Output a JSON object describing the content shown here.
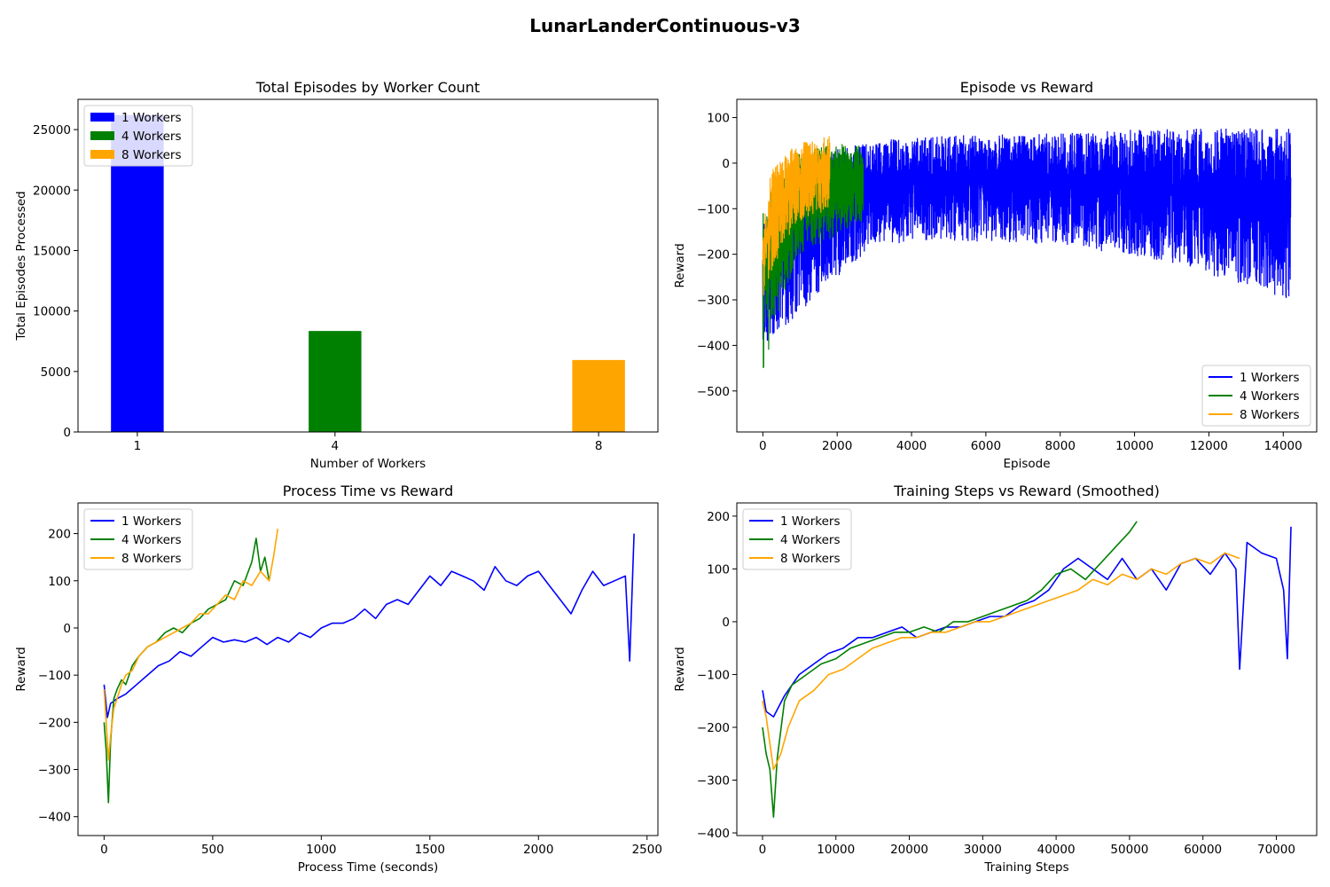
{
  "figure_title": "LunarLanderContinuous-v3",
  "colors": {
    "1 Workers": "#0000ff",
    "4 Workers": "#008000",
    "8 Workers": "#ffa500"
  },
  "chart_data": [
    {
      "id": "episodes",
      "type": "bar",
      "title": "Total Episodes by Worker Count",
      "xlabel": "Number of Workers",
      "ylabel": "Total Episodes Processed",
      "categories": [
        "1",
        "4",
        "8"
      ],
      "x_positions": [
        1,
        4,
        8
      ],
      "values": [
        26200,
        8350,
        5950
      ],
      "series_names": [
        "1 Workers",
        "4 Workers",
        "8 Workers"
      ],
      "ylim": [
        0,
        27500
      ],
      "yticks": [
        0,
        5000,
        10000,
        15000,
        20000,
        25000
      ],
      "legend": "upper-left",
      "grid": false
    },
    {
      "id": "episode_reward",
      "type": "line",
      "title": "Episode vs Reward",
      "xlabel": "Episode",
      "ylabel": "Reward",
      "xlim": [
        -700,
        14900
      ],
      "ylim": [
        -590,
        140
      ],
      "xticks": [
        0,
        2000,
        4000,
        6000,
        8000,
        10000,
        12000,
        14000
      ],
      "yticks": [
        -500,
        -400,
        -300,
        -200,
        -100,
        0,
        100
      ],
      "legend": "lower-right",
      "grid": false,
      "series": [
        {
          "name": "1 Workers",
          "x_max": 14200,
          "envelope": [
            [
              0,
              -400,
              -120
            ],
            [
              800,
              -350,
              0
            ],
            [
              2000,
              -250,
              30
            ],
            [
              3000,
              -180,
              50
            ],
            [
              5000,
              -170,
              60
            ],
            [
              8000,
              -180,
              70
            ],
            [
              11000,
              -220,
              75
            ],
            [
              14200,
              -300,
              80
            ]
          ]
        },
        {
          "name": "4 Workers",
          "x_max": 2700,
          "envelope": [
            [
              0,
              -480,
              -100
            ],
            [
              300,
              -350,
              -50
            ],
            [
              1000,
              -200,
              30
            ],
            [
              2700,
              -130,
              50
            ]
          ]
        },
        {
          "name": "8 Workers",
          "x_max": 1800,
          "envelope": [
            [
              0,
              -300,
              -150
            ],
            [
              200,
              -250,
              -20
            ],
            [
              800,
              -150,
              40
            ],
            [
              1800,
              -100,
              60
            ]
          ]
        }
      ]
    },
    {
      "id": "time_reward",
      "type": "line",
      "title": "Process Time vs Reward",
      "xlabel": "Process Time (seconds)",
      "ylabel": "Reward",
      "xlim": [
        -120,
        2550
      ],
      "ylim": [
        -440,
        265
      ],
      "xticks": [
        0,
        500,
        1000,
        1500,
        2000,
        2500
      ],
      "yticks": [
        -400,
        -300,
        -200,
        -100,
        0,
        100,
        200
      ],
      "legend": "upper-left",
      "grid": false,
      "series": [
        {
          "name": "1 Workers",
          "x": [
            0,
            15,
            30,
            60,
            100,
            150,
            200,
            250,
            300,
            350,
            400,
            450,
            500,
            550,
            600,
            650,
            700,
            750,
            800,
            850,
            900,
            950,
            1000,
            1050,
            1100,
            1150,
            1200,
            1250,
            1300,
            1350,
            1400,
            1450,
            1500,
            1550,
            1600,
            1650,
            1700,
            1750,
            1800,
            1850,
            1900,
            1950,
            2000,
            2050,
            2100,
            2150,
            2200,
            2250,
            2300,
            2350,
            2400,
            2420,
            2440
          ],
          "y": [
            -120,
            -190,
            -160,
            -150,
            -140,
            -120,
            -100,
            -80,
            -70,
            -50,
            -60,
            -40,
            -20,
            -30,
            -25,
            -30,
            -20,
            -35,
            -20,
            -30,
            -10,
            -20,
            0,
            10,
            10,
            20,
            40,
            20,
            50,
            60,
            50,
            80,
            110,
            90,
            120,
            110,
            100,
            80,
            130,
            100,
            90,
            110,
            120,
            90,
            60,
            30,
            80,
            120,
            90,
            100,
            110,
            -70,
            200
          ]
        },
        {
          "name": "4 Workers",
          "x": [
            0,
            10,
            20,
            30,
            45,
            60,
            80,
            100,
            130,
            160,
            200,
            240,
            280,
            320,
            360,
            400,
            440,
            480,
            520,
            560,
            600,
            640,
            680,
            700,
            720,
            740,
            760
          ],
          "y": [
            -200,
            -260,
            -370,
            -240,
            -150,
            -130,
            -110,
            -120,
            -80,
            -60,
            -40,
            -30,
            -10,
            0,
            -10,
            10,
            20,
            40,
            50,
            60,
            100,
            90,
            140,
            190,
            120,
            150,
            100
          ]
        },
        {
          "name": "8 Workers",
          "x": [
            0,
            10,
            20,
            30,
            45,
            60,
            80,
            100,
            130,
            160,
            200,
            240,
            280,
            320,
            360,
            400,
            440,
            480,
            520,
            560,
            600,
            640,
            680,
            720,
            760,
            780,
            800
          ],
          "y": [
            -130,
            -200,
            -280,
            -230,
            -170,
            -150,
            -120,
            -100,
            -90,
            -60,
            -40,
            -30,
            -20,
            -10,
            0,
            10,
            30,
            30,
            50,
            70,
            60,
            100,
            90,
            120,
            100,
            150,
            210
          ]
        }
      ]
    },
    {
      "id": "steps_reward",
      "type": "line",
      "title": "Training Steps vs Reward (Smoothed)",
      "xlabel": "Training Steps",
      "ylabel": "Reward",
      "xlim": [
        -3500,
        75500
      ],
      "ylim": [
        -405,
        225
      ],
      "xticks": [
        0,
        10000,
        20000,
        30000,
        40000,
        50000,
        60000,
        70000
      ],
      "yticks": [
        -400,
        -300,
        -200,
        -100,
        0,
        100,
        200
      ],
      "legend": "upper-left",
      "grid": false,
      "series": [
        {
          "name": "1 Workers",
          "x": [
            0,
            500,
            1500,
            3000,
            5000,
            7000,
            9000,
            11000,
            13000,
            15000,
            17000,
            19000,
            21000,
            23000,
            25000,
            27000,
            29000,
            31000,
            33000,
            35000,
            37000,
            39000,
            41000,
            43000,
            45000,
            47000,
            49000,
            51000,
            53000,
            55000,
            57000,
            59000,
            61000,
            63000,
            64500,
            65000,
            66000,
            68000,
            70000,
            71000,
            71500,
            72000
          ],
          "y": [
            -130,
            -170,
            -180,
            -140,
            -100,
            -80,
            -60,
            -50,
            -30,
            -30,
            -20,
            -10,
            -30,
            -20,
            -10,
            -10,
            0,
            10,
            10,
            30,
            40,
            60,
            100,
            120,
            100,
            80,
            120,
            80,
            100,
            60,
            110,
            120,
            90,
            130,
            100,
            -90,
            150,
            130,
            120,
            60,
            -70,
            180
          ]
        },
        {
          "name": "4 Workers",
          "x": [
            0,
            500,
            1000,
            1500,
            2000,
            3000,
            4000,
            6000,
            8000,
            10000,
            12000,
            14000,
            16000,
            18000,
            20000,
            22000,
            24000,
            26000,
            28000,
            30000,
            32000,
            34000,
            36000,
            38000,
            40000,
            42000,
            44000,
            46000,
            48000,
            50000,
            51000
          ],
          "y": [
            -200,
            -250,
            -280,
            -370,
            -260,
            -150,
            -120,
            -100,
            -80,
            -70,
            -50,
            -40,
            -30,
            -20,
            -20,
            -10,
            -20,
            0,
            0,
            10,
            20,
            30,
            40,
            60,
            90,
            100,
            80,
            110,
            140,
            170,
            190
          ]
        },
        {
          "name": "8 Workers",
          "x": [
            0,
            500,
            1500,
            2500,
            3500,
            5000,
            7000,
            9000,
            11000,
            13000,
            15000,
            17000,
            19000,
            21000,
            23000,
            25000,
            27000,
            29000,
            31000,
            33000,
            35000,
            37000,
            39000,
            41000,
            43000,
            45000,
            47000,
            49000,
            51000,
            53000,
            55000,
            57000,
            59000,
            61000,
            63000,
            65000
          ],
          "y": [
            -150,
            -180,
            -280,
            -250,
            -200,
            -150,
            -130,
            -100,
            -90,
            -70,
            -50,
            -40,
            -30,
            -30,
            -20,
            -20,
            -10,
            0,
            0,
            10,
            20,
            30,
            40,
            50,
            60,
            80,
            70,
            90,
            80,
            100,
            90,
            110,
            120,
            110,
            130,
            120
          ]
        }
      ]
    }
  ]
}
